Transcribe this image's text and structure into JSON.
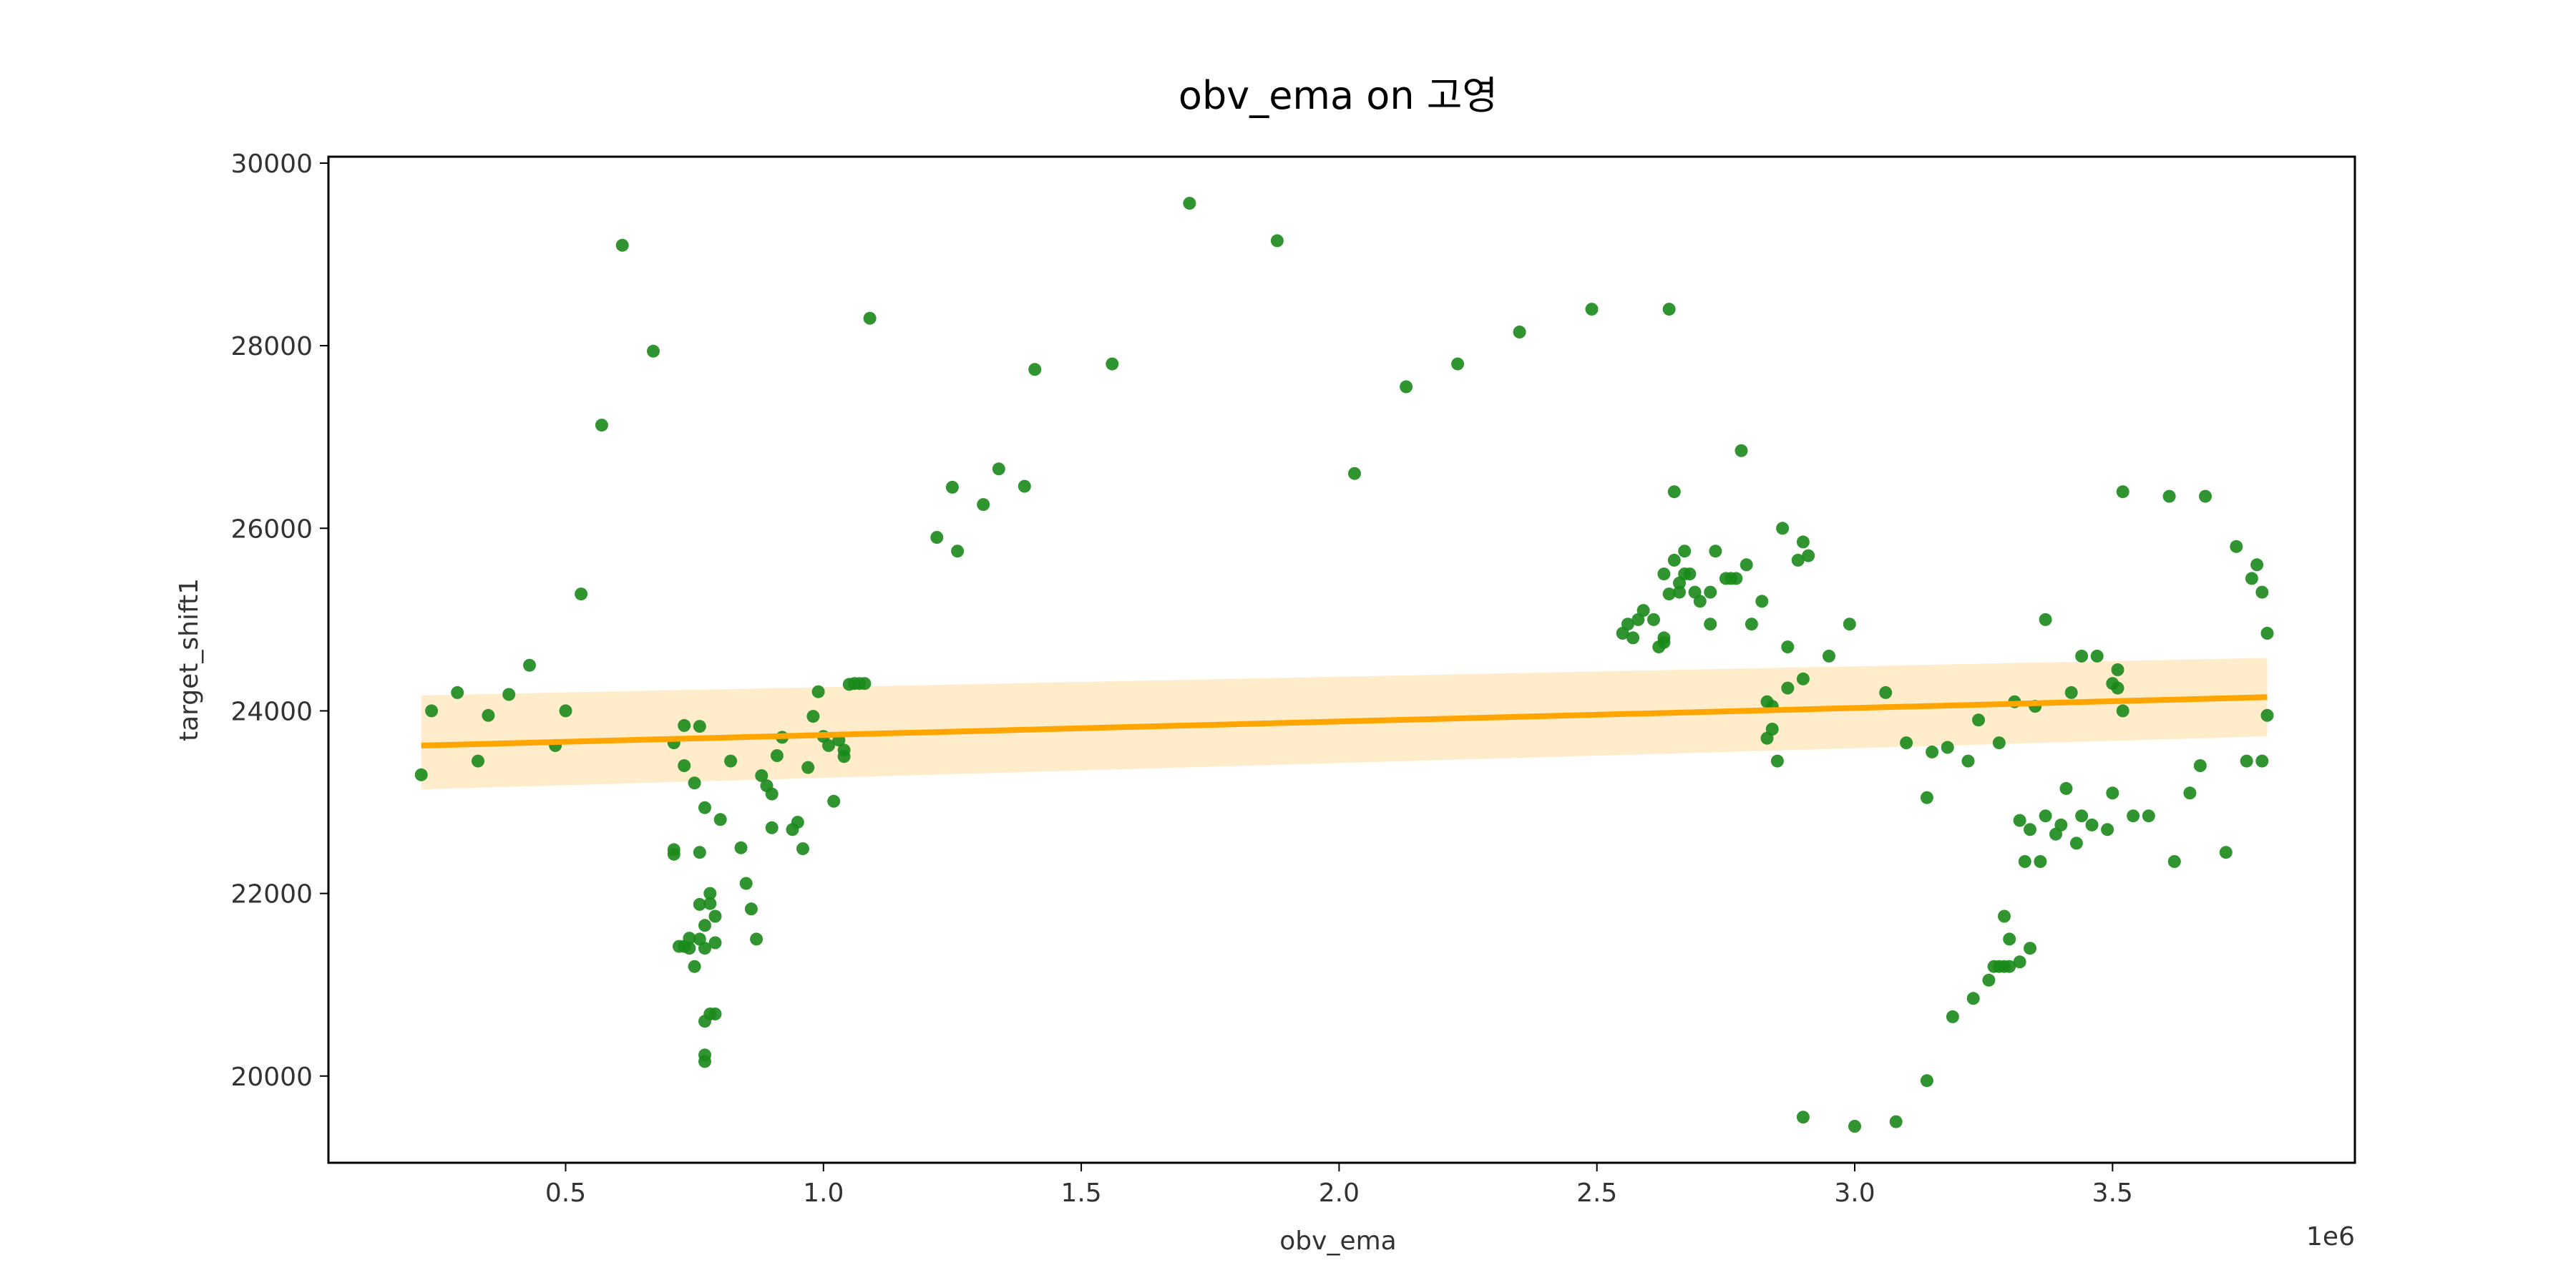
{
  "chart_data": {
    "type": "scatter",
    "title": "obv_ema on 고영",
    "xlabel": "obv_ema",
    "ylabel": "target_shift1",
    "x_offset_label": "1e6",
    "xlim": [
      0.04,
      3.97
    ],
    "ylim": [
      19050,
      30070
    ],
    "x_ticks": [
      0.5,
      1.0,
      1.5,
      2.0,
      2.5,
      3.0,
      3.5
    ],
    "x_tick_labels": [
      "0.5",
      "1.0",
      "1.5",
      "2.0",
      "2.5",
      "3.0",
      "3.5"
    ],
    "y_ticks": [
      20000,
      22000,
      24000,
      26000,
      28000,
      30000
    ],
    "y_tick_labels": [
      "20000",
      "22000",
      "24000",
      "26000",
      "28000",
      "30000"
    ],
    "grid": false,
    "colors": {
      "points": "#1a8a1a",
      "regression": "#ffa500",
      "band": "#ffe9c2"
    },
    "regression": {
      "x": [
        0.22,
        3.8
      ],
      "y": [
        23620,
        24150
      ],
      "ci_lower": [
        23140,
        23720
      ],
      "ci_upper": [
        24170,
        24580
      ]
    },
    "points": [
      [
        0.22,
        23300
      ],
      [
        0.24,
        24000
      ],
      [
        0.29,
        24200
      ],
      [
        0.33,
        23450
      ],
      [
        0.35,
        23950
      ],
      [
        0.39,
        24180
      ],
      [
        0.43,
        24500
      ],
      [
        0.48,
        23620
      ],
      [
        0.5,
        24000
      ],
      [
        0.53,
        25280
      ],
      [
        0.57,
        27130
      ],
      [
        0.61,
        29100
      ],
      [
        0.67,
        27940
      ],
      [
        0.71,
        23650
      ],
      [
        0.71,
        22480
      ],
      [
        0.71,
        22430
      ],
      [
        0.72,
        21420
      ],
      [
        0.73,
        21420
      ],
      [
        0.73,
        23400
      ],
      [
        0.73,
        23840
      ],
      [
        0.74,
        21400
      ],
      [
        0.74,
        21510
      ],
      [
        0.75,
        23210
      ],
      [
        0.75,
        21200
      ],
      [
        0.76,
        22450
      ],
      [
        0.76,
        23830
      ],
      [
        0.76,
        21500
      ],
      [
        0.76,
        21880
      ],
      [
        0.77,
        20600
      ],
      [
        0.77,
        21400
      ],
      [
        0.77,
        20230
      ],
      [
        0.77,
        20160
      ],
      [
        0.77,
        22940
      ],
      [
        0.77,
        21650
      ],
      [
        0.78,
        22000
      ],
      [
        0.78,
        20680
      ],
      [
        0.78,
        21890
      ],
      [
        0.79,
        21460
      ],
      [
        0.79,
        21750
      ],
      [
        0.79,
        20680
      ],
      [
        0.8,
        22810
      ],
      [
        0.82,
        23450
      ],
      [
        0.84,
        22500
      ],
      [
        0.85,
        22110
      ],
      [
        0.86,
        21830
      ],
      [
        0.87,
        21500
      ],
      [
        0.88,
        23290
      ],
      [
        0.89,
        23180
      ],
      [
        0.9,
        22720
      ],
      [
        0.9,
        23090
      ],
      [
        0.91,
        23510
      ],
      [
        0.92,
        23710
      ],
      [
        0.94,
        22700
      ],
      [
        0.95,
        22780
      ],
      [
        0.96,
        22490
      ],
      [
        0.97,
        23380
      ],
      [
        0.98,
        23940
      ],
      [
        0.99,
        24210
      ],
      [
        1.0,
        23720
      ],
      [
        1.01,
        23620
      ],
      [
        1.02,
        23010
      ],
      [
        1.03,
        23680
      ],
      [
        1.04,
        23570
      ],
      [
        1.04,
        23500
      ],
      [
        1.05,
        24290
      ],
      [
        1.06,
        24300
      ],
      [
        1.07,
        24300
      ],
      [
        1.08,
        24300
      ],
      [
        1.09,
        28300
      ],
      [
        1.22,
        25900
      ],
      [
        1.25,
        26450
      ],
      [
        1.26,
        25750
      ],
      [
        1.31,
        26260
      ],
      [
        1.34,
        26650
      ],
      [
        1.39,
        26460
      ],
      [
        1.41,
        27740
      ],
      [
        1.56,
        27800
      ],
      [
        1.71,
        29560
      ],
      [
        1.88,
        29150
      ],
      [
        2.03,
        26600
      ],
      [
        2.13,
        27550
      ],
      [
        2.23,
        27800
      ],
      [
        2.35,
        28150
      ],
      [
        2.49,
        28400
      ],
      [
        2.55,
        24850
      ],
      [
        2.56,
        24950
      ],
      [
        2.57,
        24800
      ],
      [
        2.58,
        25000
      ],
      [
        2.59,
        25100
      ],
      [
        2.61,
        25000
      ],
      [
        2.62,
        24700
      ],
      [
        2.63,
        24750
      ],
      [
        2.63,
        24800
      ],
      [
        2.63,
        25500
      ],
      [
        2.64,
        25280
      ],
      [
        2.64,
        28400
      ],
      [
        2.65,
        26400
      ],
      [
        2.65,
        25650
      ],
      [
        2.66,
        25400
      ],
      [
        2.66,
        25300
      ],
      [
        2.67,
        25500
      ],
      [
        2.67,
        25750
      ],
      [
        2.68,
        25500
      ],
      [
        2.69,
        25300
      ],
      [
        2.7,
        25200
      ],
      [
        2.72,
        24950
      ],
      [
        2.72,
        25300
      ],
      [
        2.73,
        25750
      ],
      [
        2.75,
        25450
      ],
      [
        2.76,
        25450
      ],
      [
        2.77,
        25450
      ],
      [
        2.78,
        26850
      ],
      [
        2.79,
        25600
      ],
      [
        2.8,
        24950
      ],
      [
        2.82,
        25200
      ],
      [
        2.83,
        24100
      ],
      [
        2.83,
        23700
      ],
      [
        2.84,
        23800
      ],
      [
        2.84,
        24050
      ],
      [
        2.85,
        23450
      ],
      [
        2.86,
        26000
      ],
      [
        2.87,
        24700
      ],
      [
        2.87,
        24250
      ],
      [
        2.89,
        25650
      ],
      [
        2.9,
        25850
      ],
      [
        2.9,
        24350
      ],
      [
        2.9,
        19550
      ],
      [
        2.91,
        25700
      ],
      [
        2.95,
        24600
      ],
      [
        2.99,
        24950
      ],
      [
        3.0,
        19450
      ],
      [
        3.06,
        24200
      ],
      [
        3.08,
        19500
      ],
      [
        3.1,
        23650
      ],
      [
        3.14,
        23050
      ],
      [
        3.14,
        19950
      ],
      [
        3.15,
        23550
      ],
      [
        3.18,
        23600
      ],
      [
        3.19,
        20650
      ],
      [
        3.22,
        23450
      ],
      [
        3.23,
        20850
      ],
      [
        3.24,
        23900
      ],
      [
        3.26,
        21050
      ],
      [
        3.27,
        21200
      ],
      [
        3.28,
        21200
      ],
      [
        3.28,
        23650
      ],
      [
        3.29,
        21750
      ],
      [
        3.29,
        21200
      ],
      [
        3.3,
        21500
      ],
      [
        3.3,
        21200
      ],
      [
        3.31,
        24100
      ],
      [
        3.32,
        21250
      ],
      [
        3.32,
        22800
      ],
      [
        3.33,
        22350
      ],
      [
        3.34,
        22700
      ],
      [
        3.34,
        21400
      ],
      [
        3.35,
        24050
      ],
      [
        3.36,
        22350
      ],
      [
        3.37,
        25000
      ],
      [
        3.37,
        22850
      ],
      [
        3.39,
        22650
      ],
      [
        3.4,
        22750
      ],
      [
        3.41,
        23150
      ],
      [
        3.42,
        24200
      ],
      [
        3.43,
        22550
      ],
      [
        3.44,
        22850
      ],
      [
        3.44,
        24600
      ],
      [
        3.46,
        22750
      ],
      [
        3.47,
        24600
      ],
      [
        3.49,
        22700
      ],
      [
        3.5,
        23100
      ],
      [
        3.5,
        24300
      ],
      [
        3.51,
        24450
      ],
      [
        3.51,
        24250
      ],
      [
        3.52,
        24000
      ],
      [
        3.52,
        26400
      ],
      [
        3.54,
        22850
      ],
      [
        3.57,
        22850
      ],
      [
        3.61,
        26350
      ],
      [
        3.62,
        22350
      ],
      [
        3.65,
        23100
      ],
      [
        3.67,
        23400
      ],
      [
        3.68,
        26350
      ],
      [
        3.72,
        22450
      ],
      [
        3.74,
        25800
      ],
      [
        3.76,
        23450
      ],
      [
        3.77,
        25450
      ],
      [
        3.78,
        25600
      ],
      [
        3.79,
        23450
      ],
      [
        3.79,
        25300
      ],
      [
        3.8,
        23950
      ],
      [
        3.8,
        24850
      ]
    ]
  }
}
